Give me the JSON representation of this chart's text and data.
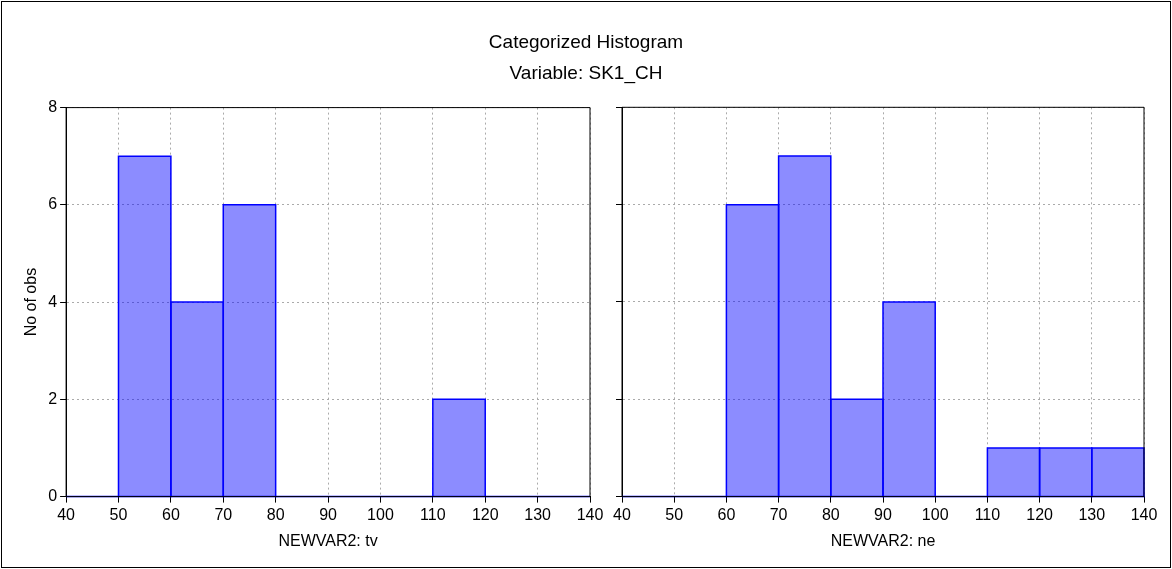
{
  "chart_data": [
    {
      "type": "histogram",
      "title": "Categorized Histogram",
      "subtitle": "Variable: SK1_CH",
      "xlabel": "NEWVAR2: tv",
      "ylabel": "No of obs",
      "bins": [
        40,
        50,
        60,
        70,
        80,
        90,
        100,
        110,
        120,
        130,
        140
      ],
      "values": [
        0,
        7,
        4,
        6,
        0,
        0,
        0,
        2,
        0,
        0
      ],
      "color": "#0000ff",
      "xlim": [
        40,
        140
      ],
      "xticks": [
        40,
        50,
        60,
        70,
        80,
        90,
        100,
        110,
        120,
        130,
        140
      ],
      "ylim": [
        0,
        8
      ],
      "yticks": [
        0,
        2,
        4,
        6,
        8
      ],
      "grid": true
    },
    {
      "type": "histogram",
      "xlabel": "NEWVAR2: ne",
      "bins": [
        40,
        50,
        60,
        70,
        80,
        90,
        100,
        110,
        120,
        130,
        140
      ],
      "values": [
        0,
        0,
        6,
        7,
        2,
        4,
        0,
        1,
        1,
        1
      ],
      "color": "#0000ff",
      "xlim": [
        40,
        140
      ],
      "xticks": [
        40,
        50,
        60,
        70,
        80,
        90,
        100,
        110,
        120,
        130,
        140
      ],
      "ylim": [
        0,
        8
      ],
      "yticks": [
        0,
        2,
        4,
        6,
        8
      ],
      "grid": true,
      "tick_labels": "x"
    }
  ]
}
